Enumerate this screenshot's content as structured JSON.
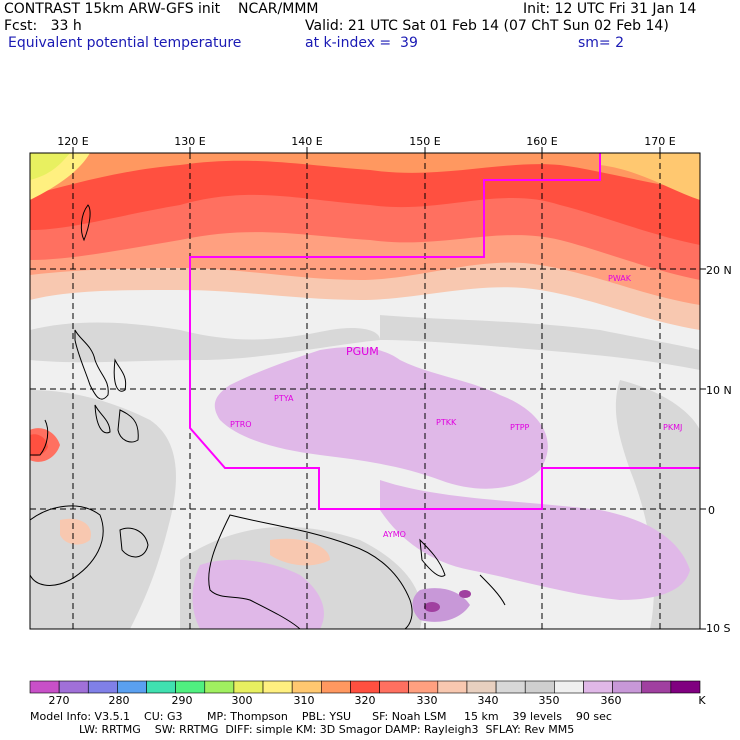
{
  "header": {
    "line1_left": "CONTRAST 15km ARW-GFS init    NCAR/MMM",
    "line1_right": "Init: 12 UTC Fri 31 Jan 14",
    "fcst": "Fcst:   33 h",
    "valid": "Valid: 21 UTC Sat 01 Feb 14 (07 ChT Sun 02 Feb 14)",
    "field": "Equivalent potential temperature",
    "k_index": "at k-index =  39",
    "smoothing": "sm= 2"
  },
  "map": {
    "lon_labels": [
      "120 E",
      "130 E",
      "140 E",
      "150 E",
      "160 E",
      "170 E"
    ],
    "lat_labels": [
      "20 N",
      "10 N",
      "0",
      "10 S"
    ],
    "stations": [
      "PWAK",
      "PGUM",
      "PTYA",
      "PTRO",
      "PTKK",
      "PTPP",
      "PKMJ",
      "AYMO"
    ],
    "boundary_color": "#ff00ff",
    "station_color": "#e000e0"
  },
  "colorbar": {
    "labels": [
      "270",
      "280",
      "290",
      "300",
      "310",
      "320",
      "330",
      "340",
      "350",
      "360",
      "K"
    ],
    "colors": [
      "#c850c8",
      "#a070d8",
      "#8080e8",
      "#5aa0f0",
      "#40e0b0",
      "#50f080",
      "#a0f060",
      "#e8f060",
      "#fff080",
      "#ffc870",
      "#ff9860",
      "#ff5040",
      "#ff7060",
      "#ffa080",
      "#f8c8b0",
      "#e8d0c0",
      "#d8d8d8",
      "#cfcfcf",
      "#f0f0f0",
      "#e0b8e8",
      "#c898d8",
      "#a040a0",
      "#800080"
    ]
  },
  "model_info": {
    "line1": "Model Info: V3.5.1    CU: G3       MP: Thompson    PBL: YSU      SF: Noah LSM     15 km    39 levels    90 sec",
    "line2": "              LW: RRTMG    SW: RRTMG  DIFF: simple KM: 3D Smagor DAMP: Rayleigh3  SFLAY: Rev MM5"
  }
}
